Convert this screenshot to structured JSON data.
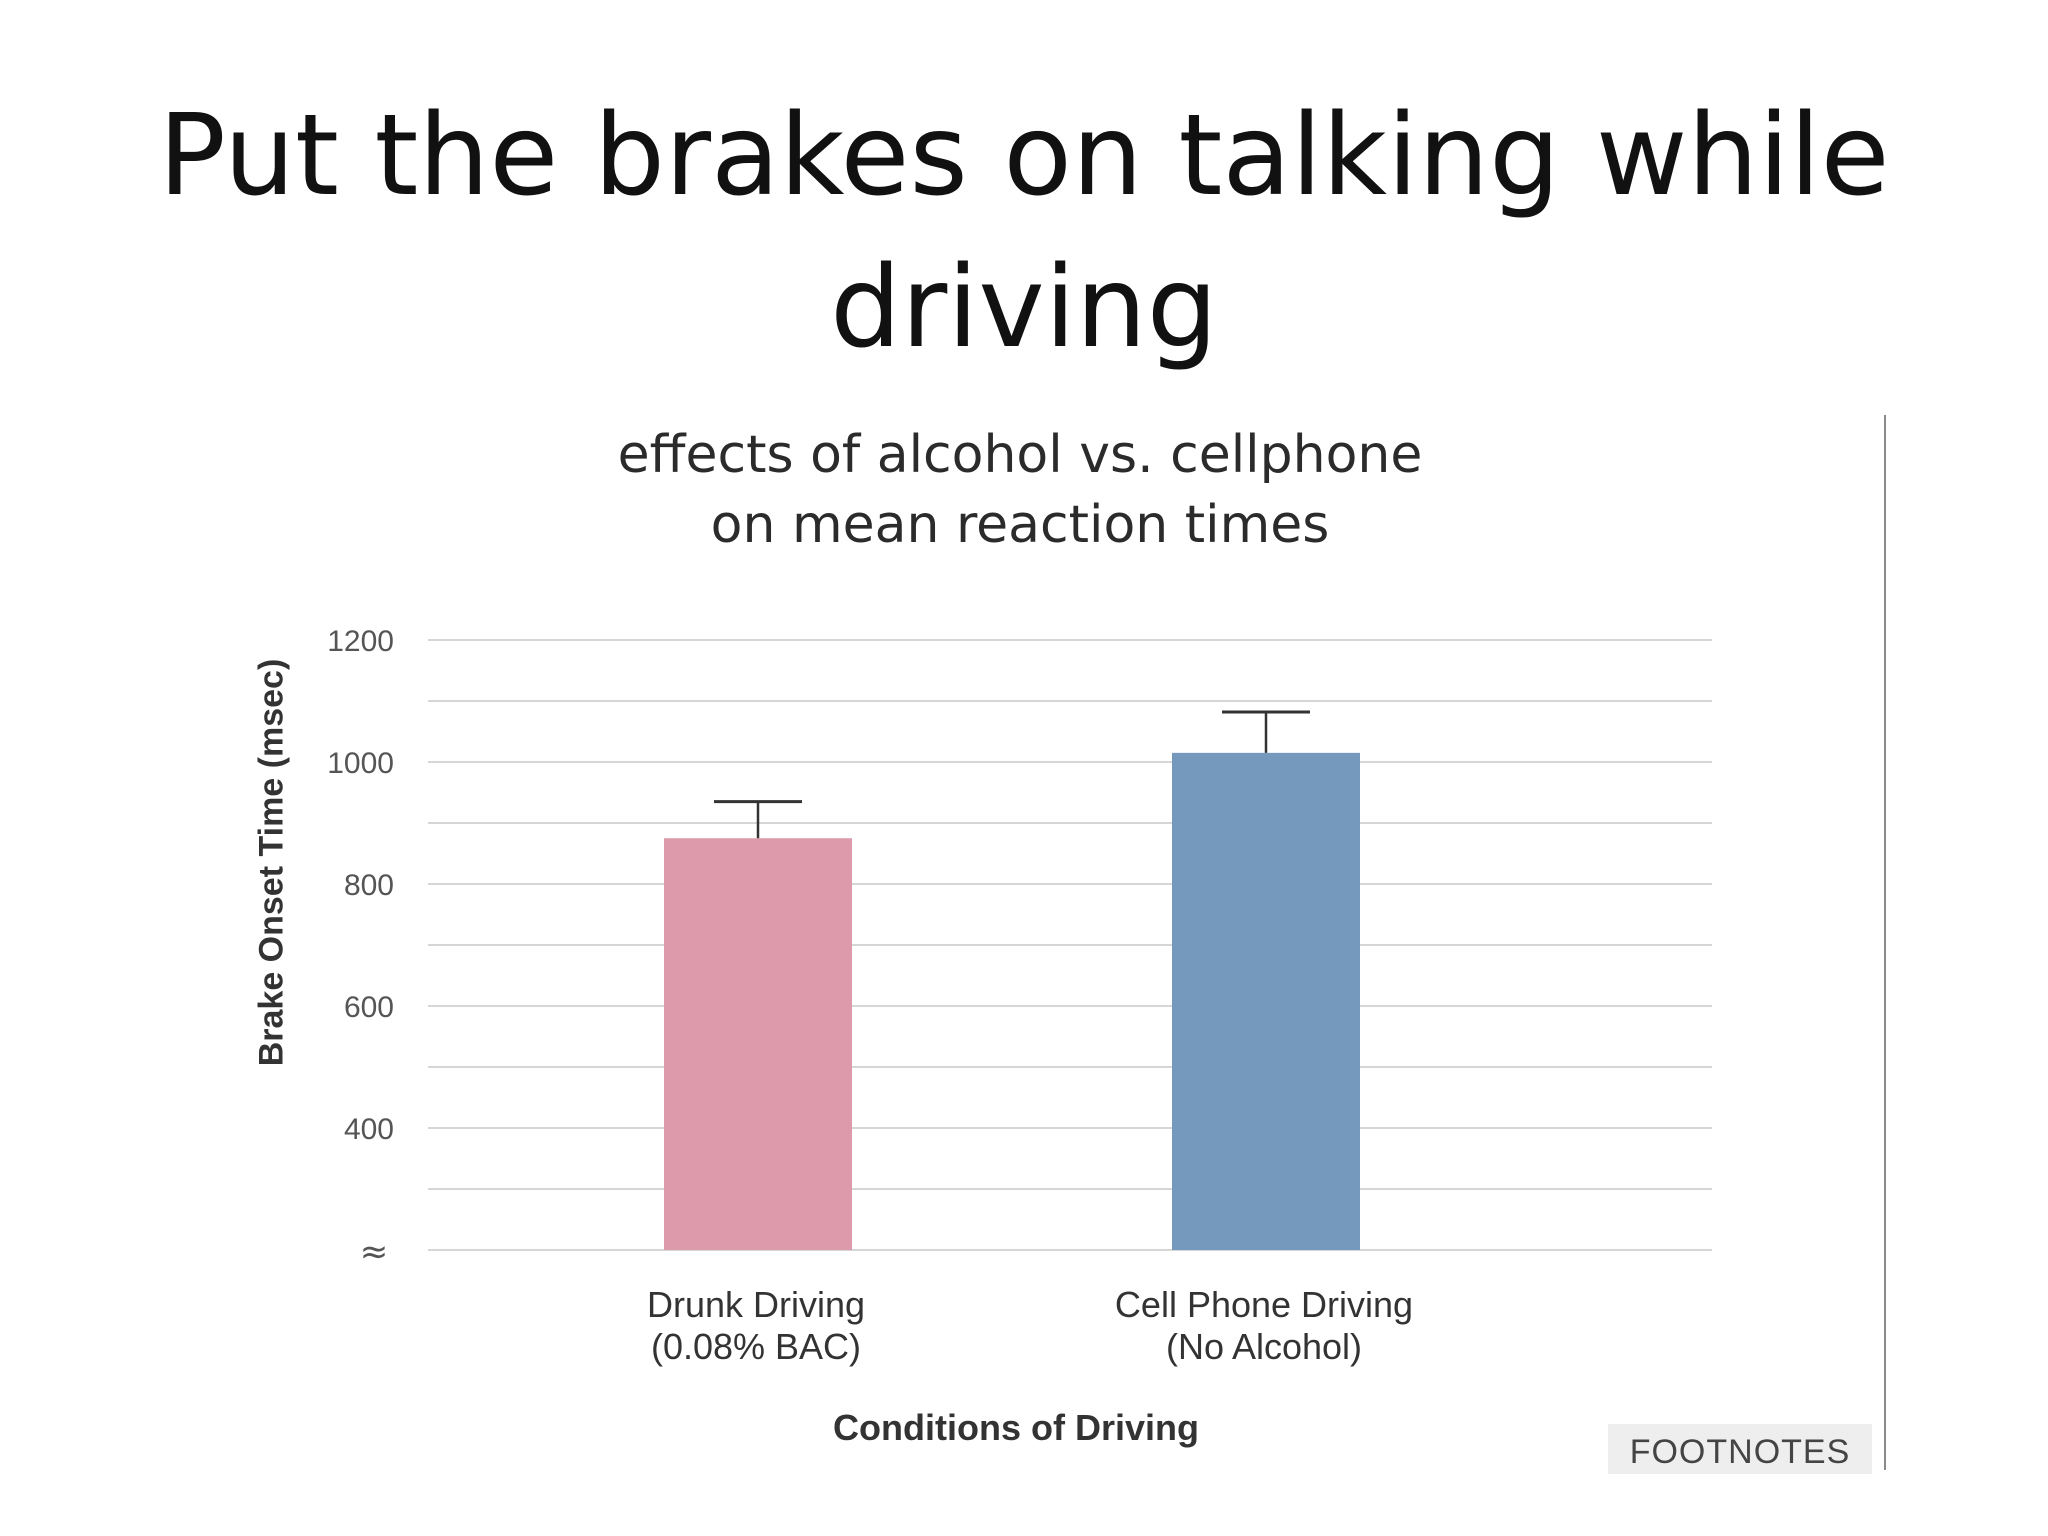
{
  "slide": {
    "title_line1": "Put the brakes on talking while",
    "title_line2": "driving"
  },
  "chart_data": {
    "type": "bar",
    "title_line1": "effects of alcohol vs. cellphone",
    "title_line2": "on mean reaction times",
    "ylabel": "Brake Onset Time (msec)",
    "xlabel": "Conditions of Driving",
    "y_ticks": [
      "1200",
      "1000",
      "800",
      "600",
      "400"
    ],
    "axis_break_symbol": "≈",
    "ylim": [
      200,
      1200
    ],
    "grid": true,
    "categories": [
      {
        "line1": "Drunk Driving",
        "line2": "(0.08% BAC)"
      },
      {
        "line1": "Cell Phone Driving",
        "line2": "(No Alcohol)"
      }
    ],
    "values": [
      875,
      1015
    ],
    "error_upper": [
      935,
      1082
    ],
    "colors": [
      "#dd9aaa",
      "#7598bd"
    ]
  },
  "footnotes_label": "FOOTNOTES"
}
